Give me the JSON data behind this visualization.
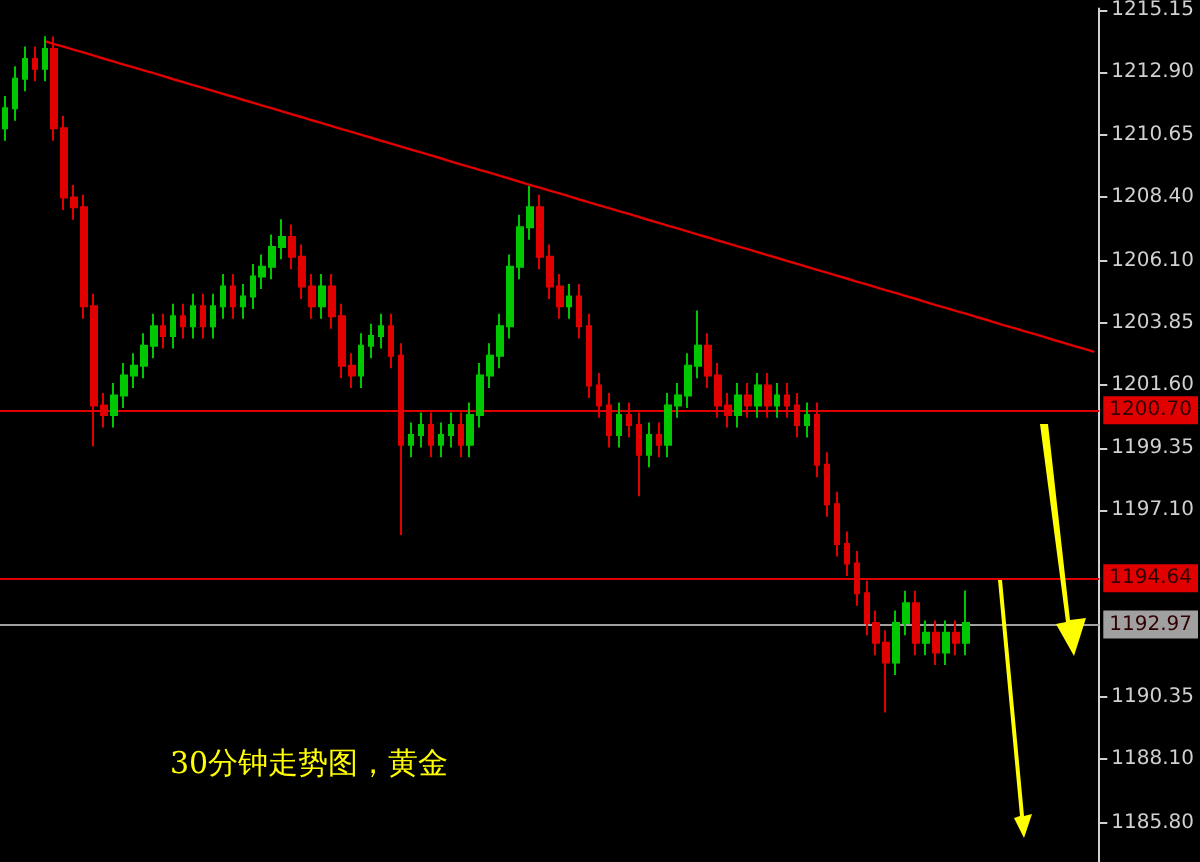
{
  "chart_data": {
    "type": "candlestick",
    "categories": [
      null,
      null,
      null,
      null,
      null,
      null,
      null,
      null,
      null,
      null,
      null,
      null,
      null,
      null,
      null,
      null,
      null,
      null,
      null,
      null,
      null,
      null,
      null,
      null,
      null,
      null,
      null,
      null,
      null,
      null,
      null,
      null,
      null,
      null,
      null,
      null,
      null,
      null,
      null,
      null,
      null,
      null,
      null,
      null,
      null,
      null,
      null,
      null,
      null,
      null,
      null,
      null,
      null,
      null,
      null,
      null,
      null,
      null,
      null,
      null,
      null,
      null,
      null,
      null,
      null,
      null,
      null,
      null,
      null,
      null,
      null,
      null,
      null,
      null,
      null,
      null,
      null,
      null,
      null,
      null,
      null,
      null,
      null,
      null,
      null,
      null,
      null,
      null,
      null,
      null,
      null,
      null,
      null,
      null,
      null,
      null,
      null,
      null,
      null,
      null,
      null,
      null,
      null,
      null,
      null,
      null,
      null,
      null,
      null,
      null,
      null
    ],
    "ohlc": [
      [
        1210.88,
        1212.05,
        1210.43,
        1211.6
      ],
      [
        1211.6,
        1213.12,
        1211.15,
        1212.67
      ],
      [
        1212.67,
        1213.83,
        1212.22,
        1213.38
      ],
      [
        1213.38,
        1213.83,
        1212.58,
        1213.03
      ],
      [
        1213.03,
        1214.2,
        1212.58,
        1213.74
      ],
      [
        1213.74,
        1214.19,
        1210.43,
        1210.88
      ],
      [
        1210.88,
        1211.33,
        1207.93,
        1208.38
      ],
      [
        1208.38,
        1208.83,
        1207.58,
        1208.03
      ],
      [
        1208.03,
        1208.48,
        1204.01,
        1204.46
      ],
      [
        1204.46,
        1204.91,
        1199.4,
        1200.88
      ],
      [
        1200.88,
        1201.33,
        1200.08,
        1200.53
      ],
      [
        1200.53,
        1201.69,
        1200.08,
        1201.24
      ],
      [
        1201.24,
        1202.41,
        1200.79,
        1201.96
      ],
      [
        1201.96,
        1202.76,
        1201.51,
        1202.31
      ],
      [
        1202.31,
        1203.48,
        1201.86,
        1203.03
      ],
      [
        1203.03,
        1204.19,
        1202.58,
        1203.74
      ],
      [
        1203.74,
        1204.19,
        1202.93,
        1203.38
      ],
      [
        1203.38,
        1204.55,
        1202.93,
        1204.1
      ],
      [
        1204.1,
        1204.55,
        1203.29,
        1203.74
      ],
      [
        1203.74,
        1204.91,
        1203.29,
        1204.46
      ],
      [
        1204.46,
        1204.91,
        1203.29,
        1203.74
      ],
      [
        1203.74,
        1204.91,
        1203.29,
        1204.46
      ],
      [
        1204.46,
        1205.62,
        1204.01,
        1205.17
      ],
      [
        1205.17,
        1205.62,
        1204.01,
        1204.46
      ],
      [
        1204.46,
        1205.26,
        1204.01,
        1204.81
      ],
      [
        1204.81,
        1205.98,
        1204.36,
        1205.53
      ],
      [
        1205.53,
        1206.33,
        1205.08,
        1205.88
      ],
      [
        1205.88,
        1207.05,
        1205.43,
        1206.6
      ],
      [
        1206.6,
        1207.6,
        1206.15,
        1206.96
      ],
      [
        1206.96,
        1207.41,
        1205.79,
        1206.24
      ],
      [
        1206.24,
        1206.69,
        1204.72,
        1205.17
      ],
      [
        1205.17,
        1205.62,
        1204.01,
        1204.46
      ],
      [
        1204.46,
        1205.62,
        1204.01,
        1205.17
      ],
      [
        1205.17,
        1205.62,
        1203.65,
        1204.1
      ],
      [
        1204.1,
        1204.55,
        1201.86,
        1202.31
      ],
      [
        1202.31,
        1202.76,
        1201.51,
        1201.96
      ],
      [
        1201.96,
        1203.48,
        1201.51,
        1203.03
      ],
      [
        1203.03,
        1203.83,
        1202.58,
        1203.38
      ],
      [
        1203.38,
        1204.19,
        1202.93,
        1203.74
      ],
      [
        1203.74,
        1204.19,
        1202.22,
        1202.67
      ],
      [
        1202.67,
        1203.12,
        1196.2,
        1199.46
      ],
      [
        1199.46,
        1200.26,
        1199.01,
        1199.81
      ],
      [
        1199.81,
        1200.62,
        1199.36,
        1200.17
      ],
      [
        1200.17,
        1200.62,
        1199.01,
        1199.46
      ],
      [
        1199.46,
        1200.26,
        1199.01,
        1199.81
      ],
      [
        1199.81,
        1200.62,
        1199.36,
        1200.17
      ],
      [
        1200.17,
        1200.62,
        1199.01,
        1199.46
      ],
      [
        1199.46,
        1200.98,
        1199.01,
        1200.53
      ],
      [
        1200.53,
        1202.41,
        1200.08,
        1201.96
      ],
      [
        1201.96,
        1203.12,
        1201.51,
        1202.67
      ],
      [
        1202.67,
        1204.19,
        1202.22,
        1203.74
      ],
      [
        1203.74,
        1206.33,
        1203.29,
        1205.88
      ],
      [
        1205.88,
        1207.76,
        1205.43,
        1207.31
      ],
      [
        1207.31,
        1208.8,
        1206.86,
        1208.03
      ],
      [
        1208.03,
        1208.48,
        1205.79,
        1206.24
      ],
      [
        1206.24,
        1206.69,
        1204.72,
        1205.17
      ],
      [
        1205.17,
        1205.62,
        1204.01,
        1204.46
      ],
      [
        1204.46,
        1205.26,
        1204.01,
        1204.81
      ],
      [
        1204.81,
        1205.26,
        1203.29,
        1203.74
      ],
      [
        1203.74,
        1204.19,
        1201.15,
        1201.6
      ],
      [
        1201.6,
        1202.05,
        1200.43,
        1200.88
      ],
      [
        1200.88,
        1201.33,
        1199.36,
        1199.81
      ],
      [
        1199.81,
        1200.98,
        1199.36,
        1200.53
      ],
      [
        1200.53,
        1200.98,
        1199.72,
        1200.17
      ],
      [
        1200.17,
        1200.62,
        1197.6,
        1199.1
      ],
      [
        1199.1,
        1200.26,
        1198.65,
        1199.81
      ],
      [
        1199.81,
        1200.26,
        1199.01,
        1199.46
      ],
      [
        1199.46,
        1201.33,
        1199.01,
        1200.88
      ],
      [
        1200.88,
        1201.69,
        1200.43,
        1201.24
      ],
      [
        1201.24,
        1202.76,
        1200.79,
        1202.31
      ],
      [
        1202.31,
        1204.3,
        1201.86,
        1203.03
      ],
      [
        1203.03,
        1203.48,
        1201.51,
        1201.96
      ],
      [
        1201.96,
        1202.41,
        1200.43,
        1200.88
      ],
      [
        1200.88,
        1201.33,
        1200.08,
        1200.53
      ],
      [
        1200.53,
        1201.69,
        1200.08,
        1201.24
      ],
      [
        1201.24,
        1201.69,
        1200.43,
        1200.88
      ],
      [
        1200.88,
        1202.05,
        1200.43,
        1201.6
      ],
      [
        1201.6,
        1202.05,
        1200.43,
        1200.88
      ],
      [
        1200.88,
        1201.69,
        1200.43,
        1201.24
      ],
      [
        1201.24,
        1201.69,
        1200.43,
        1200.88
      ],
      [
        1200.88,
        1201.33,
        1199.72,
        1200.17
      ],
      [
        1200.17,
        1200.98,
        1199.72,
        1200.53
      ],
      [
        1200.53,
        1200.98,
        1198.29,
        1198.74
      ],
      [
        1198.74,
        1199.19,
        1196.86,
        1197.31
      ],
      [
        1197.31,
        1197.76,
        1195.43,
        1195.88
      ],
      [
        1195.88,
        1196.33,
        1194.72,
        1195.17
      ],
      [
        1195.17,
        1195.62,
        1193.65,
        1194.1
      ],
      [
        1194.1,
        1194.55,
        1192.58,
        1193.03
      ],
      [
        1193.03,
        1193.48,
        1191.86,
        1192.31
      ],
      [
        1192.31,
        1192.76,
        1189.8,
        1191.6
      ],
      [
        1191.6,
        1193.48,
        1191.15,
        1193.03
      ],
      [
        1193.03,
        1194.19,
        1192.58,
        1193.74
      ],
      [
        1193.74,
        1194.19,
        1191.86,
        1192.31
      ],
      [
        1192.31,
        1193.12,
        1191.86,
        1192.67
      ],
      [
        1192.67,
        1193.12,
        1191.51,
        1191.96
      ],
      [
        1191.96,
        1193.12,
        1191.51,
        1192.67
      ],
      [
        1192.67,
        1193.12,
        1191.86,
        1192.31
      ],
      [
        1192.31,
        1194.2,
        1191.86,
        1193.03
      ],
      null,
      null,
      null,
      null,
      null,
      null,
      null,
      null,
      null,
      null,
      null,
      null,
      null
    ],
    "colors": [
      "#00c800",
      "#00c800",
      "#00c800",
      "#e00000",
      "#00c800",
      "#e00000",
      "#e00000",
      "#e00000",
      "#e00000",
      "#e00000",
      "#e00000",
      "#00c800",
      "#00c800",
      "#00c800",
      "#00c800",
      "#00c800",
      "#e00000",
      "#00c800",
      "#e00000",
      "#00c800",
      "#e00000",
      "#00c800",
      "#00c800",
      "#e00000",
      "#00c800",
      "#00c800",
      "#00c800",
      "#00c800",
      "#00c800",
      "#e00000",
      "#e00000",
      "#e00000",
      "#00c800",
      "#e00000",
      "#e00000",
      "#e00000",
      "#00c800",
      "#00c800",
      "#00c800",
      "#e00000",
      "#e00000",
      "#00c800",
      "#00c800",
      "#e00000",
      "#00c800",
      "#00c800",
      "#e00000",
      "#00c800",
      "#00c800",
      "#00c800",
      "#00c800",
      "#00c800",
      "#00c800",
      "#00c800",
      "#e00000",
      "#e00000",
      "#e00000",
      "#00c800",
      "#e00000",
      "#e00000",
      "#e00000",
      "#e00000",
      "#00c800",
      "#e00000",
      "#e00000",
      "#00c800",
      "#e00000",
      "#00c800",
      "#00c800",
      "#00c800",
      "#00c800",
      "#e00000",
      "#e00000",
      "#e00000",
      "#00c800",
      "#e00000",
      "#00c800",
      "#e00000",
      "#00c800",
      "#e00000",
      "#e00000",
      "#00c800",
      "#e00000",
      "#e00000",
      "#e00000",
      "#e00000",
      "#e00000",
      "#e00000",
      "#e00000",
      "#e00000",
      "#00c800",
      "#00c800",
      "#e00000",
      "#00c800",
      "#e00000",
      "#00c800",
      "#e00000",
      "#00c800",
      null,
      null,
      null,
      null,
      null,
      null,
      null,
      null,
      null,
      null,
      null,
      null,
      null
    ],
    "series": [
      {
        "type": "line",
        "color": "#e00000",
        "values": [
          null,
          null,
          null,
          null,
          1214.03,
          1213.92,
          1213.82,
          1213.71,
          1213.61,
          1213.5,
          1213.39,
          1213.29,
          1213.18,
          1213.08,
          1212.97,
          1212.87,
          1212.76,
          1212.65,
          1212.55,
          1212.44,
          1212.34,
          1212.23,
          1212.12,
          1212.02,
          1211.91,
          1211.81,
          1211.7,
          1211.6,
          1211.49,
          1211.38,
          1211.28,
          1211.17,
          1211.07,
          1210.96,
          1210.85,
          1210.75,
          1210.64,
          1210.54,
          1210.43,
          1210.33,
          1210.22,
          1210.11,
          1210.01,
          1209.9,
          1209.8,
          1209.69,
          1209.58,
          1209.48,
          1209.37,
          1209.27,
          1209.16,
          1209.06,
          1208.95,
          1208.84,
          1208.74,
          1208.63,
          1208.53,
          1208.42,
          1208.31,
          1208.21,
          1208.1,
          1208.0,
          1207.89,
          1207.79,
          1207.68,
          1207.57,
          1207.47,
          1207.36,
          1207.26,
          1207.15,
          1207.04,
          1206.94,
          1206.83,
          1206.73,
          1206.62,
          1206.52,
          1206.41,
          1206.3,
          1206.2,
          1206.09,
          1205.99,
          1205.88,
          1205.77,
          1205.67,
          1205.56,
          1205.46,
          1205.35,
          1205.25,
          1205.14,
          1205.03,
          1204.93,
          1204.82,
          1204.72,
          1204.61,
          1204.5,
          1204.4,
          1204.29,
          1204.19,
          1204.08,
          1203.98,
          1203.87,
          1203.76,
          1203.66,
          1203.55,
          1203.45,
          1203.34,
          1203.23,
          1203.13,
          1203.02,
          1202.92,
          1202.81
        ]
      }
    ],
    "ylim": [
      1184.4,
      1215.2
    ],
    "yticks": [
      {
        "value": 1215.15,
        "label": "1215.15"
      },
      {
        "value": 1212.9,
        "label": "1212.90"
      },
      {
        "value": 1210.65,
        "label": "1210.65"
      },
      {
        "value": 1208.4,
        "label": "1208.40"
      },
      {
        "value": 1206.1,
        "label": "1206.10"
      },
      {
        "value": 1203.85,
        "label": "1203.85"
      },
      {
        "value": 1201.6,
        "label": "1201.60"
      },
      {
        "value": 1199.35,
        "label": "1199.35"
      },
      {
        "value": 1197.1,
        "label": "1197.10"
      },
      {
        "value": 1190.35,
        "label": "1190.35"
      },
      {
        "value": 1188.1,
        "label": "1188.10"
      },
      {
        "value": 1185.8,
        "label": "1185.80"
      }
    ],
    "tick_labels": "y",
    "ref_lines": [
      {
        "axis": "y",
        "value": 1200.7,
        "label": "1200.70",
        "color": "#e00000"
      },
      {
        "axis": "y",
        "value": 1194.64,
        "label": "1194.64",
        "color": "#e00000"
      },
      {
        "axis": "y",
        "value": 1192.97,
        "label": "1192.97",
        "color": "#a0a0a0"
      }
    ],
    "annotations": [
      "30分钟走势图，黄金"
    ]
  }
}
